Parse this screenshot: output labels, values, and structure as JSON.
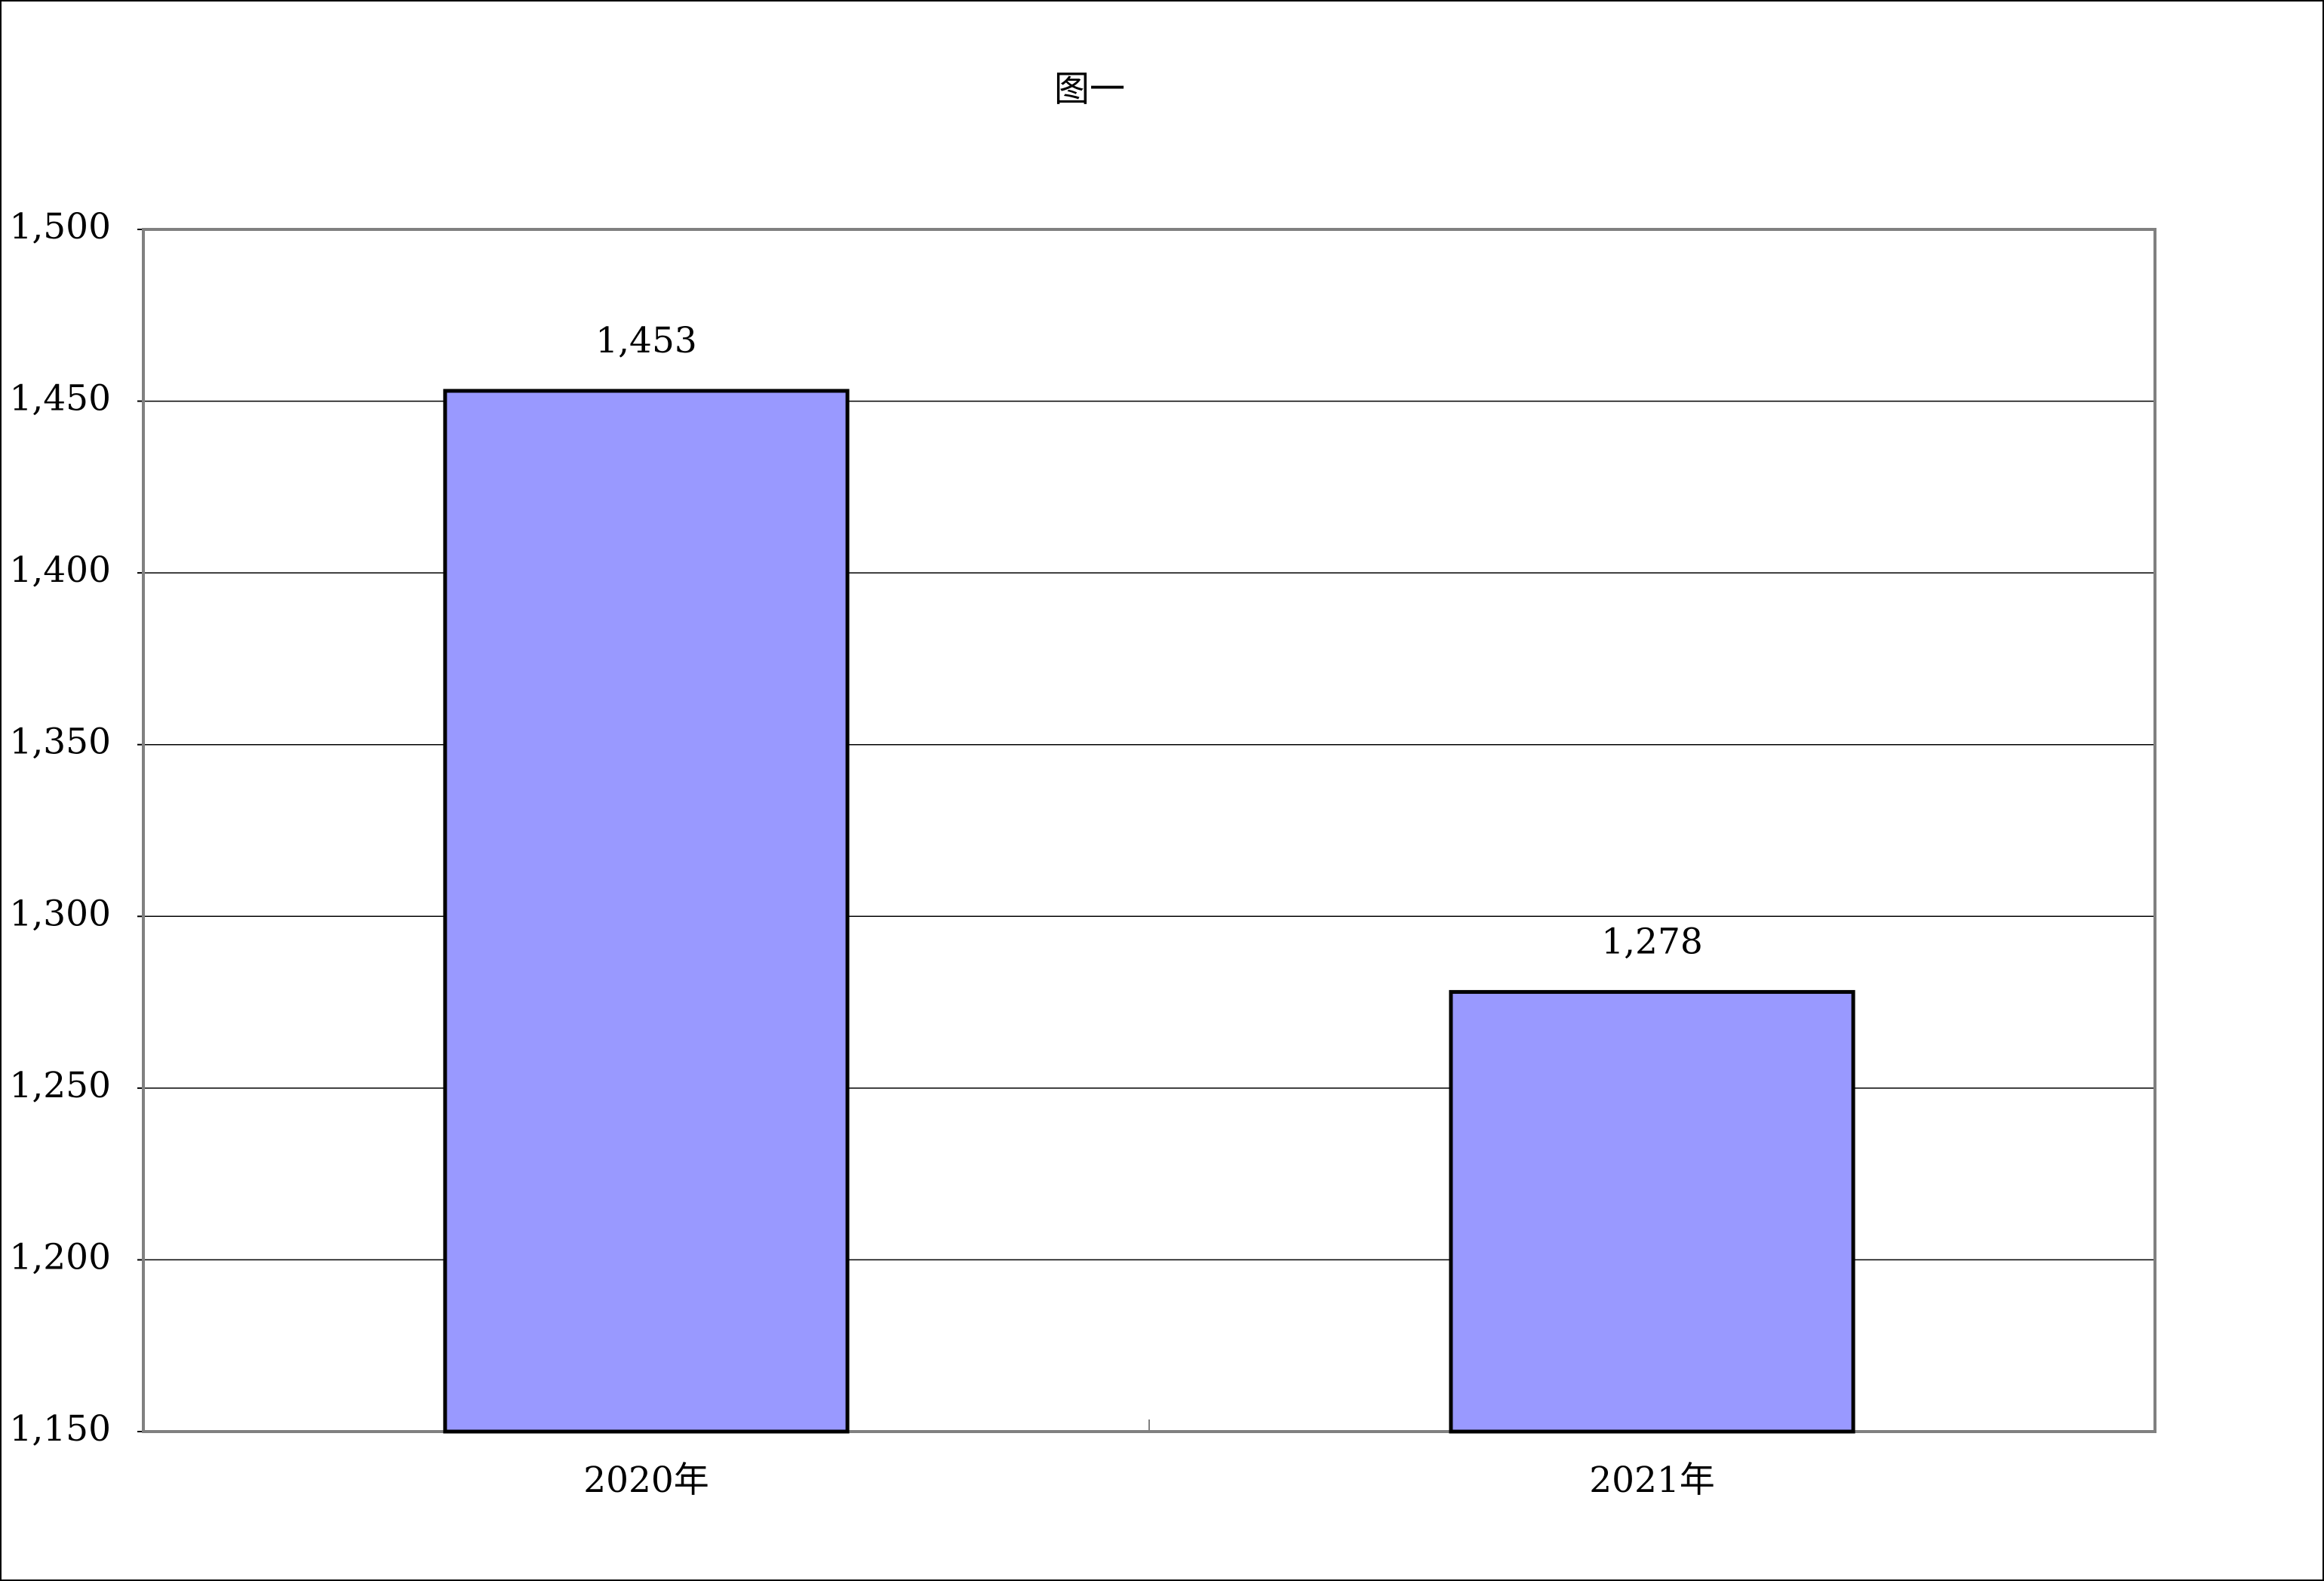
{
  "chart_data": {
    "type": "bar",
    "title": "图一",
    "categories": [
      "2020年",
      "2021年"
    ],
    "values": [
      1453,
      1278
    ],
    "value_labels": [
      "1,453",
      "1,278"
    ],
    "color": "#9999ff",
    "ylim": [
      1150,
      1500
    ],
    "yticks": [
      {
        "value": 1150,
        "label": "1,150"
      },
      {
        "value": 1200,
        "label": "1,200"
      },
      {
        "value": 1250,
        "label": "1,250"
      },
      {
        "value": 1300,
        "label": "1,300"
      },
      {
        "value": 1350,
        "label": "1,350"
      },
      {
        "value": 1400,
        "label": "1,400"
      },
      {
        "value": 1450,
        "label": "1,450"
      },
      {
        "value": 1500,
        "label": "1,500"
      }
    ],
    "grid": true
  }
}
